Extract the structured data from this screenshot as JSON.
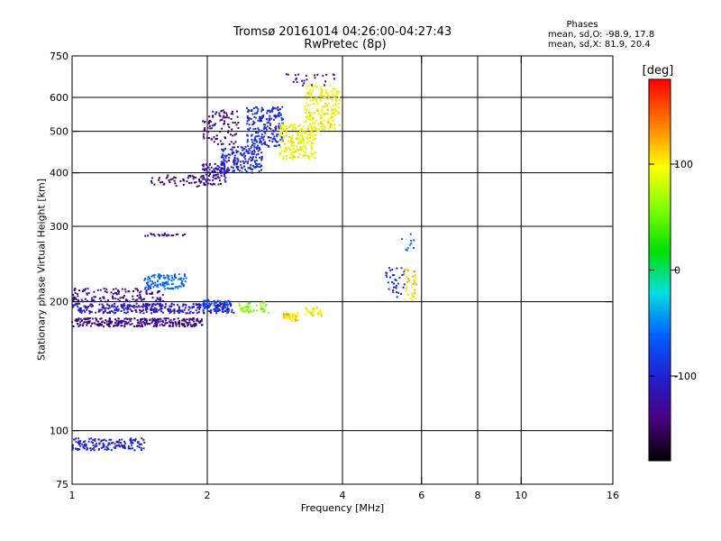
{
  "figure": {
    "title": "Tromsø 20161014 04:26:00-04:27:43",
    "subtitle": "RwPretec (8p)",
    "phases": {
      "title": "Phases",
      "o_mode": "mean, sd,O: -98.9, 17.8",
      "x_mode": "mean, sd,X:  81.9, 20.4"
    },
    "colorbar": {
      "label": "[deg]",
      "range": [
        -180,
        180
      ],
      "ticks": [
        -100,
        0,
        100
      ],
      "tick_labels": [
        "-100",
        "0",
        "100"
      ]
    }
  },
  "chart_data": {
    "type": "scatter",
    "xlabel": "Frequency [MHz]",
    "ylabel": "Stationary phase Virtual Height [km]",
    "xscale": "log",
    "yscale": "log",
    "xlim": [
      1,
      16
    ],
    "ylim": [
      75,
      750
    ],
    "xticks": [
      1,
      2,
      4,
      6,
      8,
      10,
      16
    ],
    "xtick_labels": [
      "1",
      "2",
      "4",
      "6",
      "8",
      "10",
      "16"
    ],
    "yticks": [
      75,
      100,
      200,
      300,
      400,
      500,
      600,
      750
    ],
    "ytick_labels": [
      "75",
      "100",
      "200",
      "300",
      "400",
      "500",
      "600",
      "750"
    ],
    "grid": true,
    "color_variable": "phase [deg]",
    "clusters": [
      {
        "f_range": [
          1.0,
          1.45
        ],
        "h_range": [
          90,
          96
        ],
        "phase": -100,
        "count": 150
      },
      {
        "f_range": [
          1.0,
          1.95
        ],
        "h_range": [
          175,
          183
        ],
        "phase": -135,
        "count": 300
      },
      {
        "f_range": [
          1.0,
          2.3
        ],
        "h_range": [
          188,
          198
        ],
        "phase": -110,
        "count": 330
      },
      {
        "f_range": [
          1.0,
          1.6
        ],
        "h_range": [
          200,
          215
        ],
        "phase": -130,
        "count": 130
      },
      {
        "f_range": [
          1.45,
          1.8
        ],
        "h_range": [
          214,
          232
        ],
        "phase": -60,
        "count": 110
      },
      {
        "f_range": [
          1.95,
          2.25
        ],
        "h_range": [
          190,
          202
        ],
        "phase": -80,
        "count": 70
      },
      {
        "f_range": [
          2.35,
          2.75
        ],
        "h_range": [
          188,
          200
        ],
        "phase": 60,
        "count": 45
      },
      {
        "f_range": [
          2.95,
          3.2
        ],
        "h_range": [
          180,
          188
        ],
        "phase": 110,
        "count": 40
      },
      {
        "f_range": [
          3.3,
          3.6
        ],
        "h_range": [
          185,
          194
        ],
        "phase": 100,
        "count": 30
      },
      {
        "f_range": [
          1.45,
          1.8
        ],
        "h_range": [
          285,
          289
        ],
        "phase": -120,
        "count": 25
      },
      {
        "f_range": [
          1.5,
          2.0
        ],
        "h_range": [
          370,
          395
        ],
        "phase": -140,
        "count": 55
      },
      {
        "f_range": [
          1.95,
          2.2
        ],
        "h_range": [
          375,
          420
        ],
        "phase": -120,
        "count": 90
      },
      {
        "f_range": [
          2.15,
          2.65
        ],
        "h_range": [
          400,
          460
        ],
        "phase": -100,
        "count": 180
      },
      {
        "f_range": [
          2.45,
          2.95
        ],
        "h_range": [
          460,
          570
        ],
        "phase": -90,
        "count": 210
      },
      {
        "f_range": [
          1.95,
          2.35
        ],
        "h_range": [
          465,
          560
        ],
        "phase": -140,
        "count": 90
      },
      {
        "f_range": [
          2.9,
          3.5
        ],
        "h_range": [
          430,
          520
        ],
        "phase": 95,
        "count": 200
      },
      {
        "f_range": [
          3.3,
          3.95
        ],
        "h_range": [
          500,
          640
        ],
        "phase": 100,
        "count": 200
      },
      {
        "f_range": [
          3.0,
          3.9
        ],
        "h_range": [
          640,
          680
        ],
        "phase": -120,
        "count": 25
      },
      {
        "f_range": [
          5.0,
          5.5
        ],
        "h_range": [
          205,
          240
        ],
        "phase": -90,
        "count": 35
      },
      {
        "f_range": [
          5.5,
          5.85
        ],
        "h_range": [
          200,
          240
        ],
        "phase": 110,
        "count": 40
      },
      {
        "f_range": [
          5.4,
          5.8
        ],
        "h_range": [
          260,
          290
        ],
        "phase": -60,
        "count": 10
      }
    ]
  }
}
